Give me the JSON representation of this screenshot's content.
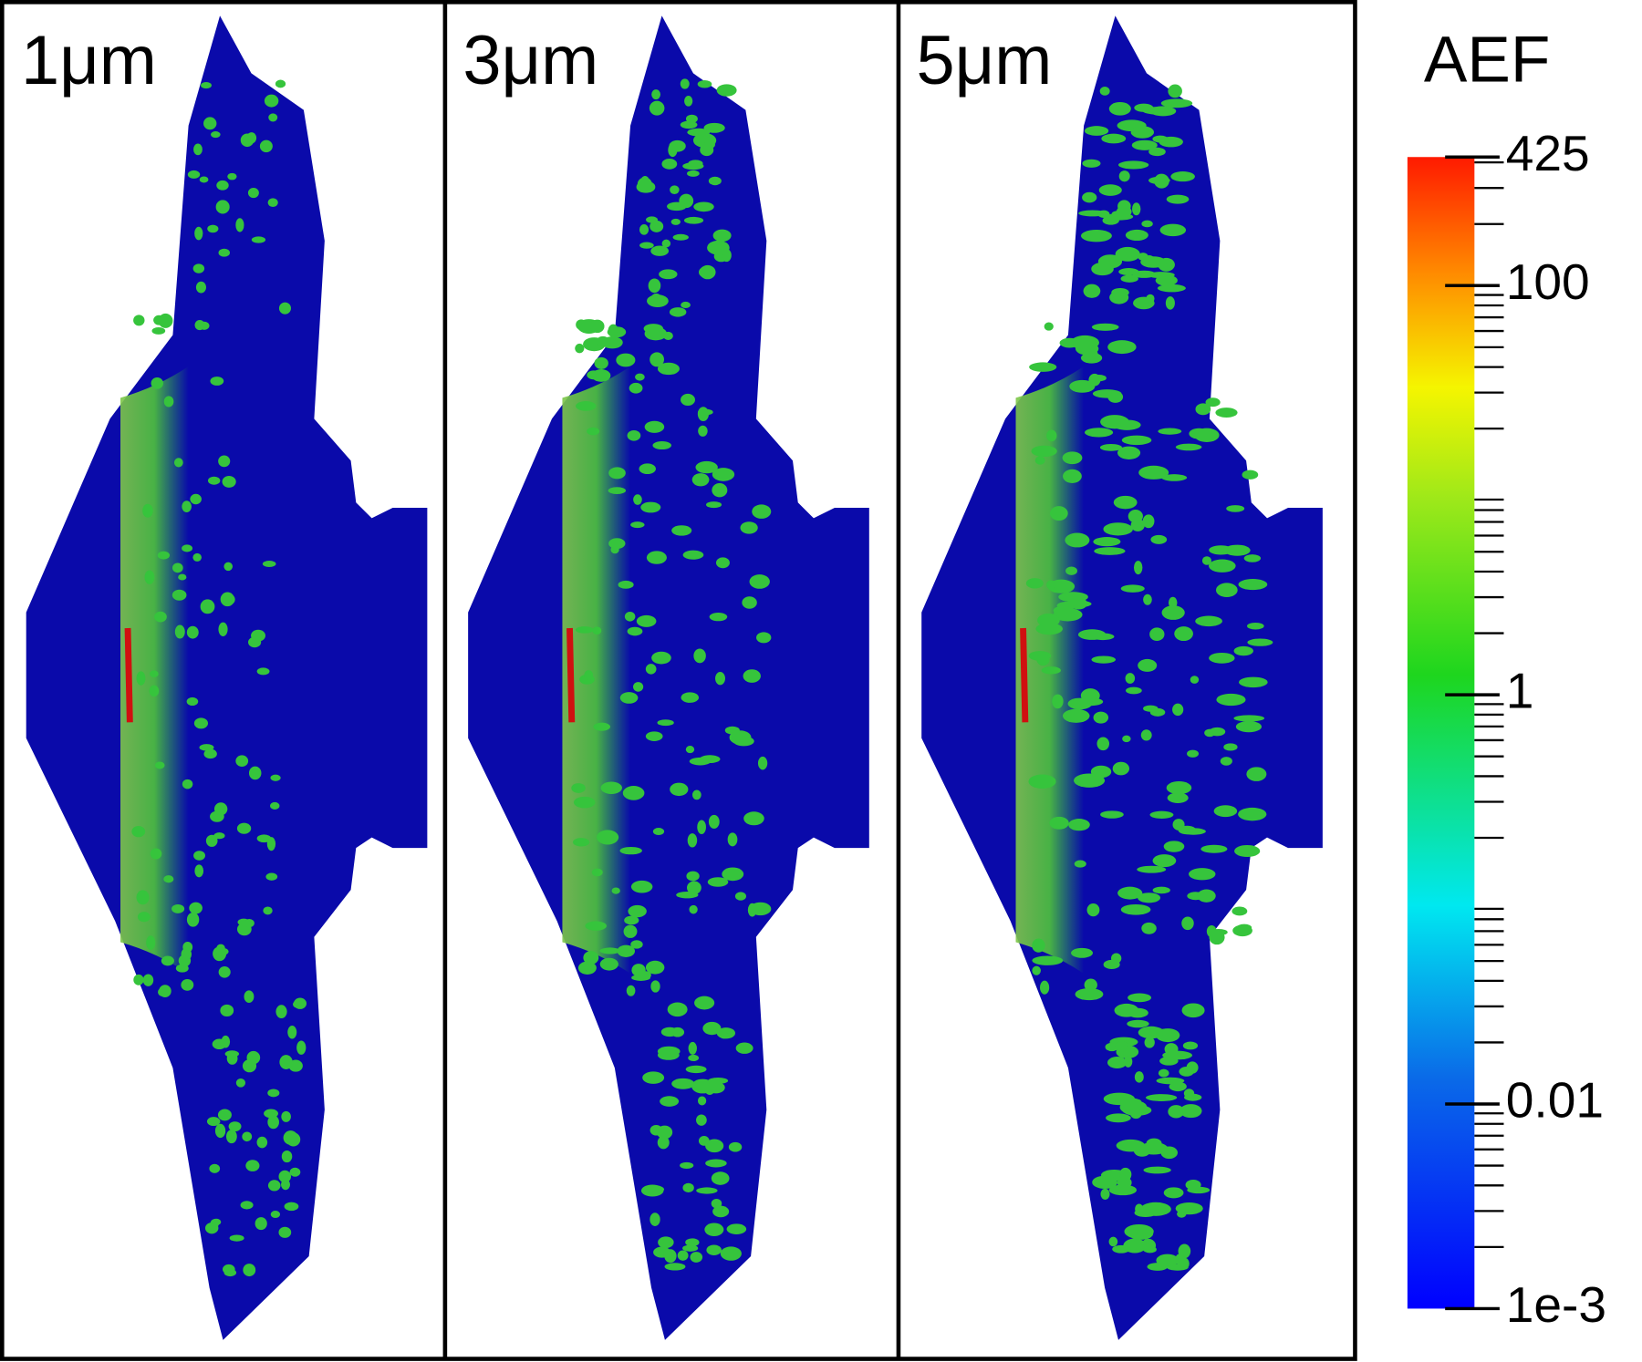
{
  "panels": [
    {
      "label": "1μm"
    },
    {
      "label": "3μm"
    },
    {
      "label": "5μm"
    }
  ],
  "colorbar": {
    "title": "AEF",
    "scale": "log",
    "lim": [
      0.001,
      425
    ],
    "ticks": [
      425,
      100,
      1,
      0.01,
      {
        "value": 0.001,
        "label": "1e-3"
      }
    ]
  }
}
